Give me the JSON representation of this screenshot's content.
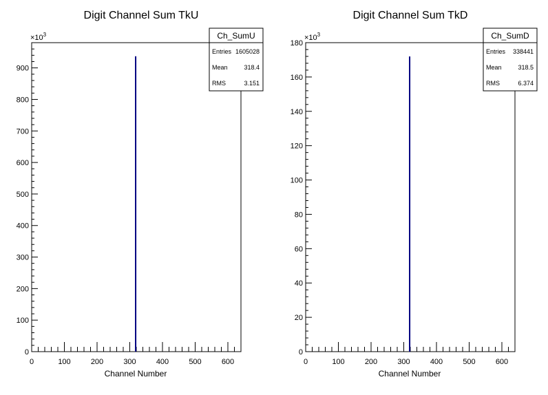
{
  "chart_data": [
    {
      "type": "bar",
      "title": "Digit Channel Sum TkU",
      "xlabel": "Channel Number",
      "ylabel": "",
      "exponent_label": "×10",
      "exponent_power": "3",
      "xlim": [
        0,
        640
      ],
      "ylim": [
        0,
        980
      ],
      "xticks": [
        "0",
        "100",
        "200",
        "300",
        "400",
        "500",
        "600"
      ],
      "xtick_values": [
        0,
        100,
        200,
        300,
        400,
        500,
        600
      ],
      "yticks": [
        "0",
        "100",
        "200",
        "300",
        "400",
        "500",
        "600",
        "700",
        "800",
        "900"
      ],
      "ytick_values": [
        0,
        100,
        200,
        300,
        400,
        500,
        600,
        700,
        800,
        900
      ],
      "series": [
        {
          "bins": [
            {
              "x": 318,
              "value": 937
            }
          ]
        }
      ],
      "line_color": "#000080",
      "stats": {
        "name": "Ch_SumU",
        "rows": [
          {
            "label": "Entries",
            "value": "1605028"
          },
          {
            "label": "Mean",
            "value": "318.4"
          },
          {
            "label": "RMS",
            "value": "3.151"
          }
        ]
      }
    },
    {
      "type": "bar",
      "title": "Digit Channel Sum TkD",
      "xlabel": "Channel Number",
      "ylabel": "",
      "exponent_label": "×10",
      "exponent_power": "3",
      "xlim": [
        0,
        640
      ],
      "ylim": [
        0,
        180
      ],
      "xticks": [
        "0",
        "100",
        "200",
        "300",
        "400",
        "500",
        "600"
      ],
      "xtick_values": [
        0,
        100,
        200,
        300,
        400,
        500,
        600
      ],
      "yticks": [
        "0",
        "20",
        "40",
        "60",
        "80",
        "100",
        "120",
        "140",
        "160",
        "180"
      ],
      "ytick_values": [
        0,
        20,
        40,
        60,
        80,
        100,
        120,
        140,
        160,
        180
      ],
      "series": [
        {
          "bins": [
            {
              "x": 318,
              "value": 172
            }
          ]
        }
      ],
      "line_color": "#000080",
      "stats": {
        "name": "Ch_SumD",
        "rows": [
          {
            "label": "Entries",
            "value": "338441"
          },
          {
            "label": "Mean",
            "value": "318.5"
          },
          {
            "label": "RMS",
            "value": "6.374"
          }
        ]
      }
    }
  ]
}
